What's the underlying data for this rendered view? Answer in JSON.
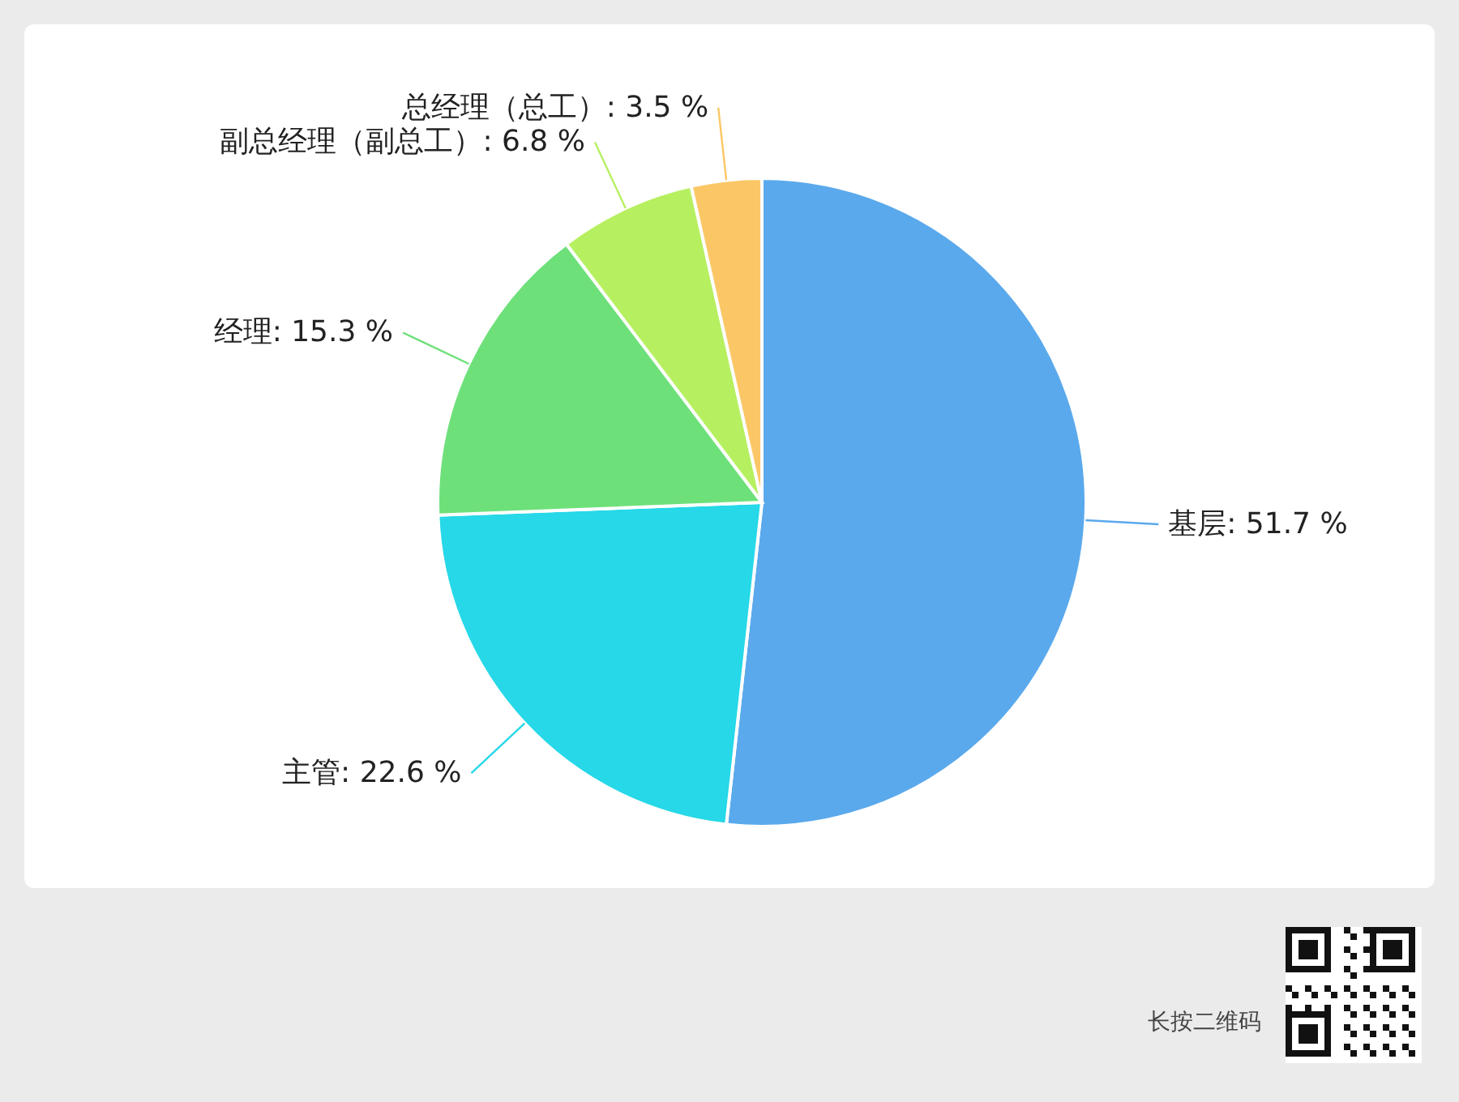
{
  "chart_data": {
    "type": "pie",
    "categories": [
      "基层",
      "主管",
      "经理",
      "副总经理（副总工）",
      "总经理（总工）"
    ],
    "values": [
      51.7,
      22.6,
      15.3,
      6.8,
      3.5
    ],
    "value_labels": [
      "51.7 %",
      "22.6 %",
      "15.3 %",
      "6.8 %",
      "3.5 %"
    ],
    "colors": [
      "#5aa9ec",
      "#26d8e8",
      "#6ee07a",
      "#b6f060",
      "#fbc766"
    ],
    "legend": false,
    "annotations": [
      "长按二维码"
    ]
  }
}
